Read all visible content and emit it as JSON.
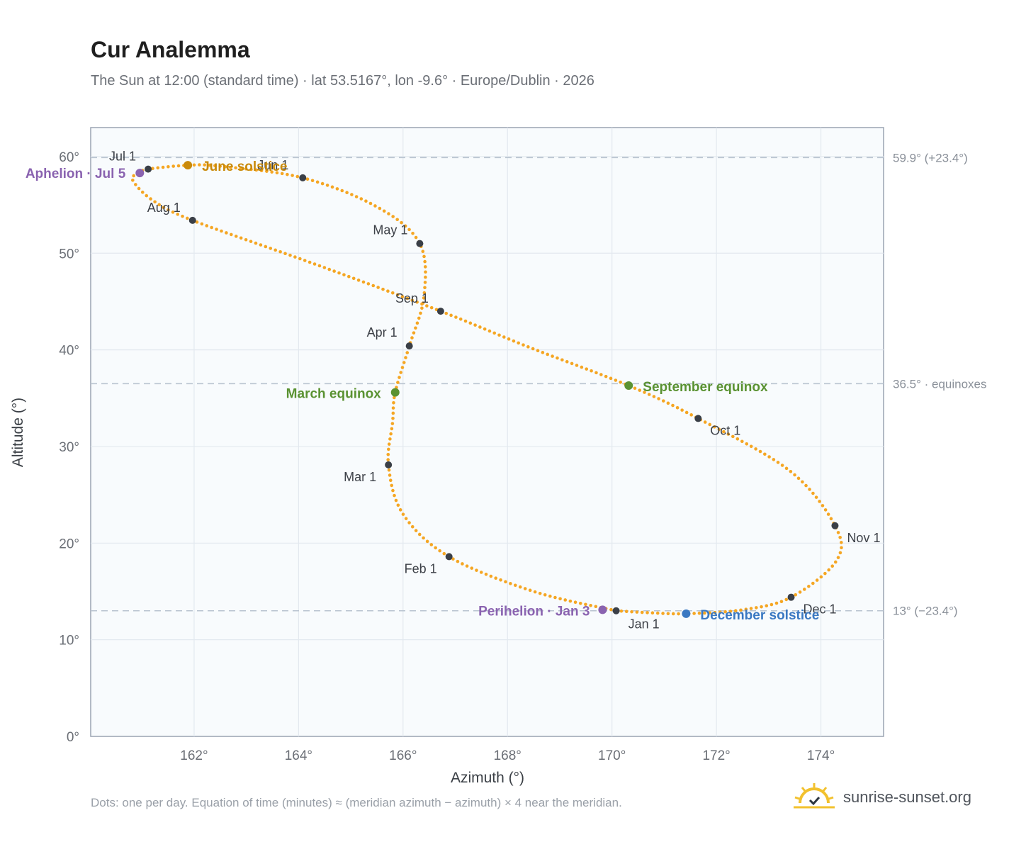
{
  "header": {
    "title": "Cur Analemma",
    "subtitle": "The Sun at 12:00 (standard time) · lat 53.5167°, lon -9.6° · Europe/Dublin · 2026"
  },
  "footer": {
    "note": "Dots: one per day. Equation of time (minutes) ≈ (meridian azimuth − azimuth) × 4 near the meridian.",
    "brand": "sunrise-sunset.org",
    "brand_icon": "sun-logo-icon"
  },
  "colors": {
    "path": "#f5a623",
    "month_dot": "#3a3f47",
    "equinox": "#5a9232",
    "june_solstice": "#c98a0b",
    "december_solstice": "#3a78c2",
    "apsis": "#8a63b0",
    "plot_bg": "#f8fbfd",
    "grid": "#e3e9ef",
    "frame": "#9aa4b2",
    "ref_line": "#b9c4d0"
  },
  "chart_data": {
    "type": "scatter",
    "title": "Cur Analemma",
    "xlabel": "Azimuth (°)",
    "ylabel": "Altitude (°)",
    "xlim": [
      160.02,
      175.2
    ],
    "ylim": [
      0,
      63
    ],
    "x_ticks": [
      162,
      164,
      166,
      168,
      170,
      172,
      174
    ],
    "x_tick_labels": [
      "162°",
      "164°",
      "166°",
      "168°",
      "170°",
      "172°",
      "174°"
    ],
    "y_ticks": [
      0,
      10,
      20,
      30,
      40,
      50,
      60
    ],
    "y_tick_labels": [
      "0°",
      "10°",
      "20°",
      "30°",
      "40°",
      "50°",
      "60°"
    ],
    "grid": true,
    "reference_lines": [
      {
        "y": 59.9,
        "label": "59.9° (+23.4°)"
      },
      {
        "y": 36.5,
        "label": "36.5° · equinoxes"
      },
      {
        "y": 13.0,
        "label": "13° (−23.4°)"
      }
    ],
    "month_markers": [
      {
        "label": "Jan 1",
        "az": 170.08,
        "alt": 13.0
      },
      {
        "label": "Feb 1",
        "az": 166.88,
        "alt": 18.6
      },
      {
        "label": "Mar 1",
        "az": 165.72,
        "alt": 28.1
      },
      {
        "label": "Apr 1",
        "az": 166.12,
        "alt": 40.4
      },
      {
        "label": "May 1",
        "az": 166.32,
        "alt": 51.0
      },
      {
        "label": "Jun 1",
        "az": 164.08,
        "alt": 57.8
      },
      {
        "label": "Jul 1",
        "az": 161.12,
        "alt": 58.7
      },
      {
        "label": "Aug 1",
        "az": 161.97,
        "alt": 53.4
      },
      {
        "label": "Sep 1",
        "az": 166.72,
        "alt": 44.0
      },
      {
        "label": "Oct 1",
        "az": 171.65,
        "alt": 32.9
      },
      {
        "label": "Nov 1",
        "az": 174.27,
        "alt": 21.8
      },
      {
        "label": "Dec 1",
        "az": 173.43,
        "alt": 14.4
      }
    ],
    "events": [
      {
        "label": "March equinox",
        "az": 165.85,
        "alt": 35.6,
        "kind": "equinox"
      },
      {
        "label": "June solstice",
        "az": 161.88,
        "alt": 59.1,
        "kind": "june_solstice"
      },
      {
        "label": "September equinox",
        "az": 170.32,
        "alt": 36.3,
        "kind": "equinox"
      },
      {
        "label": "December solstice",
        "az": 171.42,
        "alt": 12.7,
        "kind": "december_solstice"
      },
      {
        "label": "Perihelion · Jan 3",
        "az": 169.82,
        "alt": 13.1,
        "kind": "apsis"
      },
      {
        "label": "Aphelion · Jul 5",
        "az": 160.96,
        "alt": 58.3,
        "kind": "apsis"
      }
    ],
    "path_keypoints": [
      [
        170.08,
        13.0
      ],
      [
        168.5,
        15.0
      ],
      [
        166.88,
        18.6
      ],
      [
        166.0,
        23.0
      ],
      [
        165.72,
        28.1
      ],
      [
        165.8,
        32.5
      ],
      [
        165.85,
        35.6
      ],
      [
        166.12,
        40.4
      ],
      [
        166.4,
        45.5
      ],
      [
        166.32,
        51.0
      ],
      [
        165.5,
        54.8
      ],
      [
        164.08,
        57.8
      ],
      [
        162.5,
        59.0
      ],
      [
        161.88,
        59.1
      ],
      [
        161.12,
        58.7
      ],
      [
        160.96,
        58.3
      ],
      [
        160.82,
        57.6
      ],
      [
        161.2,
        55.5
      ],
      [
        161.97,
        53.4
      ],
      [
        164.4,
        48.7
      ],
      [
        166.72,
        44.0
      ],
      [
        168.4,
        40.3
      ],
      [
        170.32,
        36.3
      ],
      [
        171.65,
        32.9
      ],
      [
        173.4,
        27.5
      ],
      [
        174.27,
        21.8
      ],
      [
        174.3,
        18.2
      ],
      [
        173.43,
        14.4
      ],
      [
        172.5,
        13.1
      ],
      [
        171.42,
        12.7
      ],
      [
        170.7,
        12.8
      ],
      [
        170.08,
        13.0
      ]
    ]
  }
}
